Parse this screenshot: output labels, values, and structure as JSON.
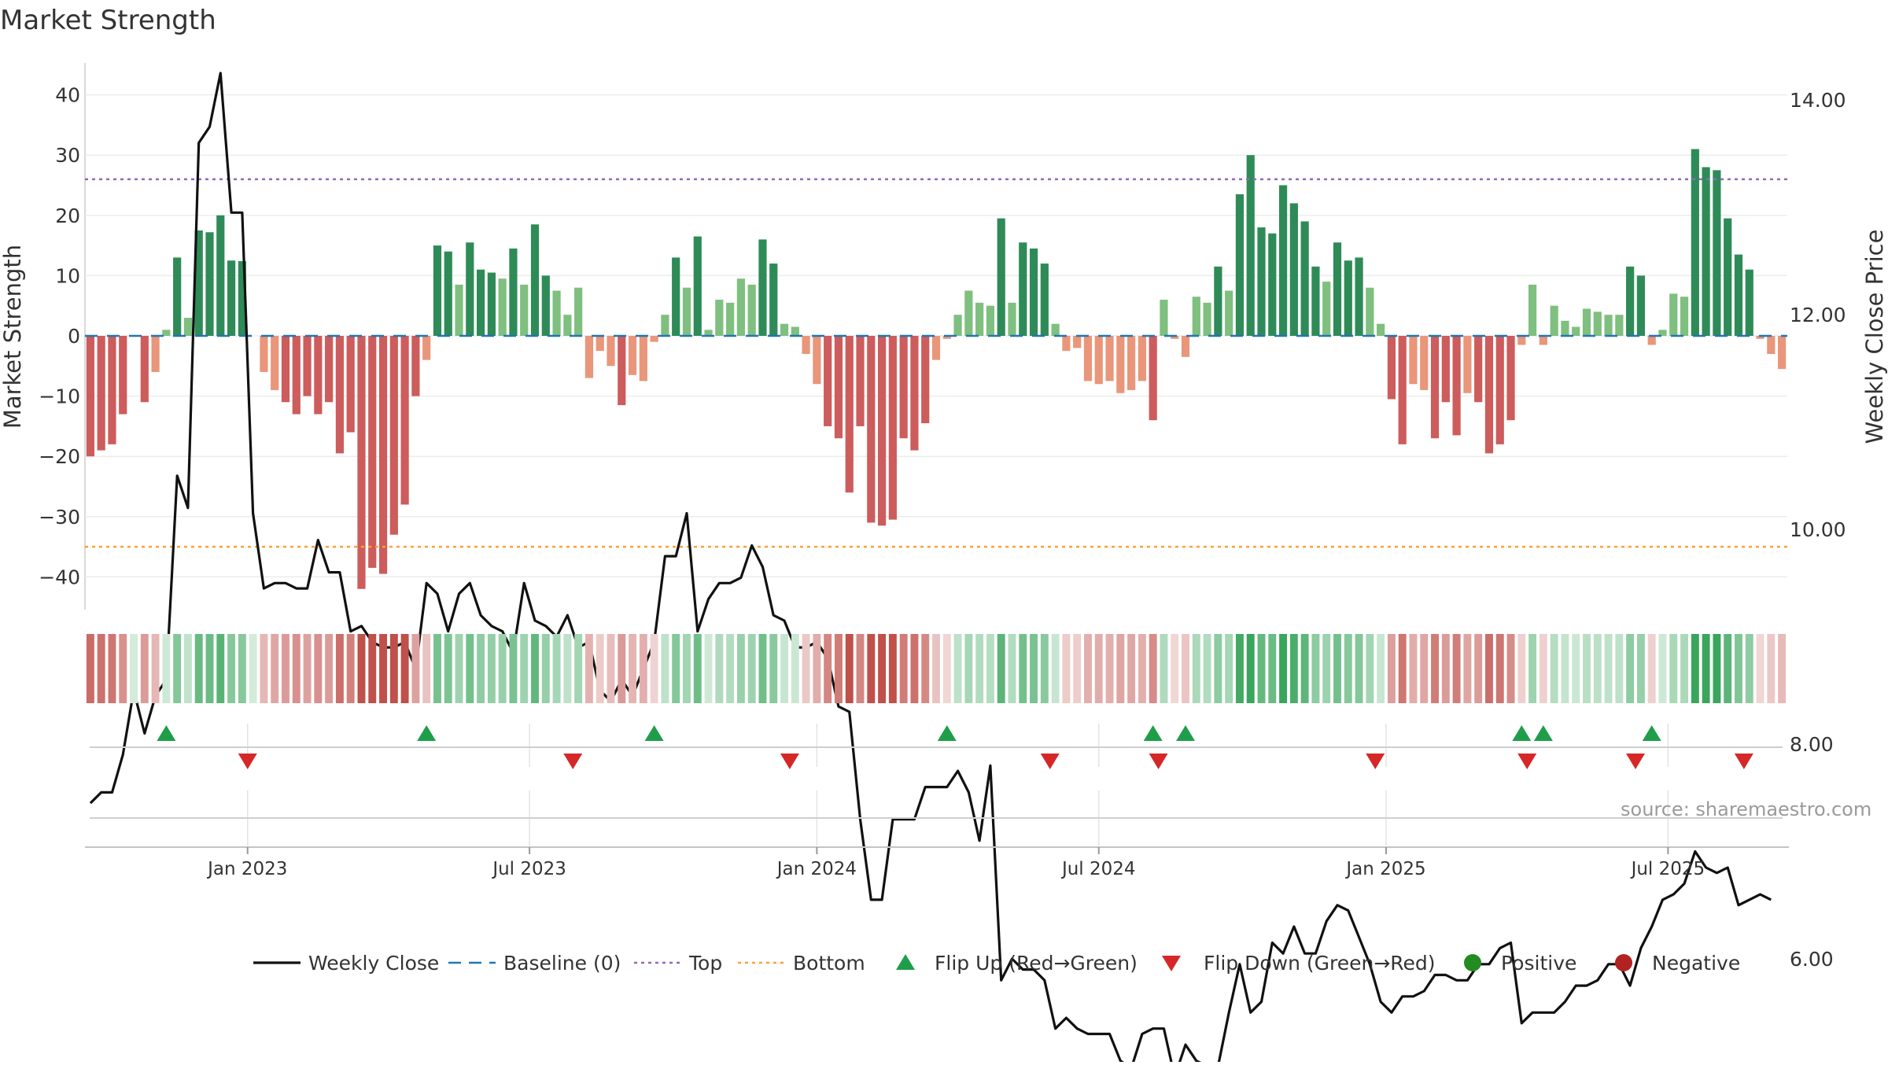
{
  "chart_data": {
    "type": "bar",
    "title": "Market Strength",
    "source": "source: sharemaestro.com",
    "ylabel_left": "Market Strength",
    "ylabel_right": "Weekly Close Price",
    "left_axis": {
      "ylim": [
        -45,
        45
      ],
      "ticks": [
        40,
        30,
        20,
        10,
        0,
        -10,
        -20,
        -30,
        -40
      ],
      "tick_labels": [
        "40",
        "30",
        "20",
        "10",
        "0",
        "−10",
        "−20",
        "−30",
        "−40"
      ]
    },
    "right_axis": {
      "ylim": [
        4.5,
        14.4
      ],
      "ticks": [
        14,
        12,
        10,
        8,
        6
      ],
      "tick_labels": [
        "14.00",
        "12.00",
        "10.00",
        "8.00",
        "6.00"
      ]
    },
    "x_ticks": [
      {
        "label": "Jan 2023",
        "week": 15
      },
      {
        "label": "Jul 2023",
        "week": 41
      },
      {
        "label": "Jan 2024",
        "week": 67.5
      },
      {
        "label": "Jul 2024",
        "week": 93.5
      },
      {
        "label": "Jan 2025",
        "week": 120
      },
      {
        "label": "Jul 2025",
        "week": 146
      }
    ],
    "top_level": 26,
    "bottom_level": -35,
    "strength": [
      -20,
      -19,
      -18,
      -13,
      0,
      -11,
      -6,
      1,
      13,
      3,
      17.5,
      17.2,
      20,
      12.5,
      12.4,
      0,
      -6,
      -9,
      -11,
      -13,
      -10,
      -13,
      -11,
      -19.5,
      -16,
      -42,
      -38.5,
      -39.5,
      -33,
      -28,
      -10,
      -4,
      15,
      14,
      8.5,
      15.5,
      11,
      10.5,
      9.5,
      14.5,
      8.5,
      18.5,
      10,
      7.5,
      3.5,
      8,
      -7,
      -2.5,
      -5,
      -11.5,
      -6.5,
      -7.5,
      -1,
      3.5,
      13,
      8,
      16.5,
      1,
      6,
      5.5,
      9.5,
      8.5,
      16,
      12,
      2,
      1.5,
      -3,
      -8,
      -15,
      -17,
      -26,
      -15,
      -31,
      -31.5,
      -30.5,
      -17,
      -19,
      -14.5,
      -4,
      -0.5,
      3.5,
      7.5,
      5.5,
      5,
      19.5,
      5.5,
      15.5,
      14.5,
      12,
      2,
      -2.5,
      -2,
      -7.5,
      -8,
      -7.5,
      -9.5,
      -9,
      -7.5,
      -14,
      6,
      -0.5,
      -3.5,
      6.5,
      5.5,
      11.5,
      7.5,
      23.5,
      30,
      18,
      17,
      25,
      22,
      19,
      11.5,
      9,
      15.5,
      12.5,
      13,
      8,
      2,
      -10.5,
      -18,
      -8,
      -9,
      -17,
      -11,
      -16.5,
      -9.5,
      -11,
      -19.5,
      -18,
      -14,
      -1.5,
      8.5,
      -1.5,
      5,
      2.5,
      1.5,
      4.5,
      4,
      3.5,
      3.5,
      11.5,
      10,
      -1.5,
      1,
      7,
      6.5,
      31,
      28,
      27.5,
      19.5,
      13.5,
      11,
      -0.5,
      -3,
      -5.5
    ],
    "price": [
      7.45,
      7.55,
      7.55,
      7.9,
      8.5,
      8.1,
      8.45,
      8.6,
      10.5,
      10.2,
      13.6,
      13.75,
      14.25,
      12.95,
      12.95,
      10.15,
      9.45,
      9.5,
      9.5,
      9.45,
      9.45,
      9.9,
      9.6,
      9.6,
      9.05,
      9.1,
      8.95,
      8.9,
      8.9,
      8.95,
      8.7,
      9.5,
      9.4,
      9.05,
      9.4,
      9.5,
      9.2,
      9.1,
      9.05,
      8.85,
      9.5,
      9.15,
      9.1,
      9.0,
      9.2,
      8.9,
      8.95,
      8.5,
      8.4,
      8.6,
      8.45,
      8.7,
      8.95,
      9.75,
      9.75,
      10.15,
      9.05,
      9.35,
      9.5,
      9.5,
      9.55,
      9.85,
      9.65,
      9.2,
      9.15,
      8.9,
      8.9,
      8.95,
      8.8,
      8.35,
      8.3,
      7.3,
      6.55,
      6.55,
      7.3,
      7.3,
      7.3,
      7.6,
      7.6,
      7.6,
      7.75,
      7.55,
      7.1,
      7.8,
      5.8,
      6.0,
      5.9,
      5.9,
      5.8,
      5.35,
      5.45,
      5.35,
      5.3,
      5.3,
      5.3,
      5.05,
      4.98,
      5.3,
      5.35,
      5.35,
      4.9,
      5.2,
      5.05,
      5.0,
      5.0,
      5.5,
      5.95,
      5.5,
      5.6,
      6.15,
      6.05,
      6.3,
      6.05,
      6.05,
      6.35,
      6.5,
      6.45,
      6.2,
      5.95,
      5.6,
      5.5,
      5.65,
      5.65,
      5.7,
      5.85,
      5.85,
      5.8,
      5.8,
      5.95,
      5.95,
      6.1,
      6.15,
      5.4,
      5.5,
      5.5,
      5.5,
      5.6,
      5.75,
      5.75,
      5.8,
      5.95,
      5.95,
      5.75,
      6.1,
      6.3,
      6.55,
      6.6,
      6.7,
      7.0,
      6.85,
      6.8,
      6.85,
      6.5,
      6.55,
      6.6,
      6.55
    ],
    "flip_up_weeks": [
      7.5,
      31.5,
      52.5,
      79.5,
      98.5,
      101.5,
      132.5,
      134.5,
      144.5
    ],
    "flip_down_weeks": [
      15,
      45,
      65,
      89,
      99,
      119,
      133,
      143,
      153
    ],
    "colors": {
      "pos_strong": "#2e8b57",
      "pos_weak": "#7fbf7f",
      "neg_strong": "#cd5c5c",
      "neg_weak": "#e9967a",
      "price_line": "#111111",
      "baseline": "#1f77b4",
      "top_line": "#9467bd",
      "bottom_line": "#ff9f3a",
      "flip_up": "#1f9e4a",
      "flip_down": "#d62728",
      "positive_dot": "#228b22",
      "negative_dot": "#b22222"
    },
    "legend": [
      {
        "label": "Weekly Close",
        "marker": "line",
        "color": "#111111"
      },
      {
        "label": "Baseline (0)",
        "marker": "dash",
        "color": "#1f77b4"
      },
      {
        "label": "Top",
        "marker": "dot-line",
        "color": "#9467bd"
      },
      {
        "label": "Bottom",
        "marker": "dot-line",
        "color": "#ff9f3a"
      },
      {
        "label": "Flip Up (Red→Green)",
        "marker": "tri-up",
        "color": "#1f9e4a"
      },
      {
        "label": "Flip Down (Green→Red)",
        "marker": "tri-down",
        "color": "#d62728"
      },
      {
        "label": "Positive",
        "marker": "circle",
        "color": "#228b22"
      },
      {
        "label": "Negative",
        "marker": "circle",
        "color": "#b22222"
      }
    ],
    "legend_placement": "bottom-center",
    "grid": true
  }
}
